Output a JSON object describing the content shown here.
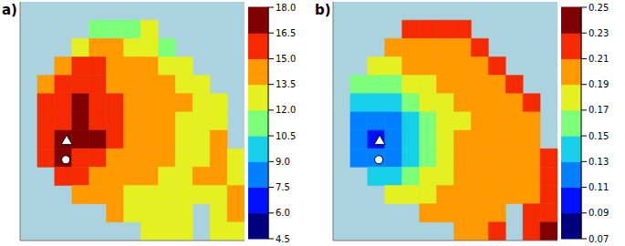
{
  "chart_data": [
    {
      "type": "heatmap",
      "title": "a)",
      "xlim": [
        0,
        13
      ],
      "ylim": [
        0,
        13
      ],
      "tick_labels": false,
      "cells": [
        [
          null,
          null,
          null,
          null,
          null,
          null,
          null,
          null,
          null,
          null,
          null,
          null,
          null
        ],
        [
          null,
          null,
          null,
          null,
          11.5,
          11.2,
          11.5,
          12.8,
          null,
          null,
          null,
          null,
          null
        ],
        [
          null,
          null,
          null,
          13.2,
          14,
          13.8,
          12.9,
          12.6,
          11.8,
          null,
          null,
          null,
          null
        ],
        [
          null,
          null,
          14.2,
          15.4,
          15.8,
          14.8,
          14.2,
          13.9,
          13.2,
          13,
          null,
          null,
          null
        ],
        [
          null,
          14.8,
          15.9,
          16,
          15.6,
          14.9,
          14.6,
          14.1,
          13.8,
          13.3,
          13.1,
          null,
          null
        ],
        [
          null,
          15.6,
          16.2,
          16.8,
          16.1,
          15.2,
          14.9,
          14.4,
          14,
          13.6,
          13.2,
          13,
          null
        ],
        [
          null,
          15.7,
          16.4,
          17.2,
          16.3,
          15.4,
          14.9,
          14.4,
          13.7,
          13.2,
          13.1,
          12.9,
          null
        ],
        [
          null,
          16,
          17.6,
          17.4,
          16.6,
          15.6,
          14.8,
          14.1,
          13.7,
          13.2,
          13,
          13.6,
          null
        ],
        [
          null,
          15.6,
          16.6,
          16.1,
          15.4,
          14.8,
          14.4,
          14,
          13.6,
          13.1,
          13,
          13.7,
          13.2
        ],
        [
          null,
          null,
          15.2,
          15.1,
          14.6,
          14.2,
          14,
          13.7,
          13.2,
          13,
          13.6,
          13.8,
          13.2
        ],
        [
          null,
          null,
          null,
          14.1,
          14,
          13.6,
          13.4,
          13,
          13.1,
          12.9,
          12.6,
          13.1,
          13.7
        ],
        [
          null,
          null,
          null,
          null,
          null,
          13.6,
          13.1,
          12.9,
          12.6,
          13,
          null,
          12.8,
          13.6
        ],
        [
          null,
          null,
          null,
          null,
          null,
          null,
          null,
          12.8,
          12.5,
          12.9,
          null,
          12.4,
          12.8
        ]
      ],
      "colorbar_range": [
        4.5,
        18
      ],
      "colorbar_ticks": [
        4.5,
        {
          "value": 6,
          "label": "6.0"
        },
        7.5,
        {
          "value": 9,
          "label": "9.0"
        },
        10.5,
        {
          "value": 12,
          "label": "12.0"
        },
        13.5,
        {
          "value": 15,
          "label": "15.0"
        },
        16.5,
        {
          "value": 18,
          "label": "18.0"
        }
      ],
      "points": [
        {
          "marker": "triangle",
          "x": 2.7,
          "y": 7.6
        },
        {
          "marker": "circle",
          "x": 2.65,
          "y": 8.6
        }
      ]
    },
    {
      "type": "heatmap",
      "title": "b)",
      "xlim": [
        0,
        13
      ],
      "ylim": [
        0,
        13
      ],
      "tick_labels": false,
      "cells": [
        [
          null,
          null,
          null,
          null,
          null,
          null,
          null,
          null,
          null,
          null,
          null,
          null,
          null
        ],
        [
          null,
          null,
          null,
          null,
          0.22,
          0.22,
          0.22,
          0.22,
          null,
          null,
          null,
          null,
          null
        ],
        [
          null,
          null,
          null,
          0.2,
          0.2,
          0.2,
          0.2,
          0.2,
          0.22,
          null,
          null,
          null,
          null
        ],
        [
          null,
          null,
          0.18,
          0.18,
          0.2,
          0.2,
          0.2,
          0.2,
          0.2,
          0.22,
          null,
          null,
          null
        ],
        [
          null,
          0.16,
          0.16,
          0.16,
          0.18,
          0.18,
          0.2,
          0.2,
          0.2,
          0.2,
          0.22,
          null,
          null
        ],
        [
          null,
          0.14,
          0.14,
          0.14,
          0.16,
          0.18,
          0.18,
          0.2,
          0.2,
          0.2,
          0.2,
          0.22,
          null
        ],
        [
          null,
          0.12,
          0.12,
          0.12,
          0.14,
          0.16,
          0.18,
          0.18,
          0.2,
          0.2,
          0.2,
          0.2,
          null
        ],
        [
          null,
          0.12,
          0.1,
          0.12,
          0.14,
          0.16,
          0.18,
          0.2,
          0.2,
          0.2,
          0.2,
          0.2,
          null
        ],
        [
          null,
          0.12,
          0.12,
          0.12,
          0.14,
          0.16,
          0.18,
          0.2,
          0.2,
          0.2,
          0.2,
          0.2,
          0.22
        ],
        [
          null,
          null,
          0.14,
          0.14,
          0.16,
          0.18,
          0.18,
          0.2,
          0.2,
          0.2,
          0.2,
          0.2,
          0.22
        ],
        [
          null,
          null,
          null,
          0.18,
          0.18,
          0.18,
          0.2,
          0.2,
          0.2,
          0.2,
          0.2,
          0.2,
          0.22
        ],
        [
          null,
          null,
          null,
          null,
          null,
          0.2,
          0.2,
          0.2,
          0.2,
          0.2,
          null,
          0.22,
          0.22
        ],
        [
          null,
          null,
          null,
          null,
          null,
          null,
          null,
          0.2,
          0.2,
          0.22,
          null,
          0.22,
          0.24
        ]
      ],
      "colorbar_range": [
        0.07,
        0.25
      ],
      "colorbar_ticks": [
        0.07,
        0.09,
        0.11,
        0.13,
        0.15,
        0.17,
        0.19,
        0.21,
        0.23,
        0.25
      ],
      "points": [
        {
          "marker": "triangle",
          "x": 2.7,
          "y": 7.6
        },
        {
          "marker": "circle",
          "x": 2.65,
          "y": 8.6
        }
      ]
    }
  ]
}
